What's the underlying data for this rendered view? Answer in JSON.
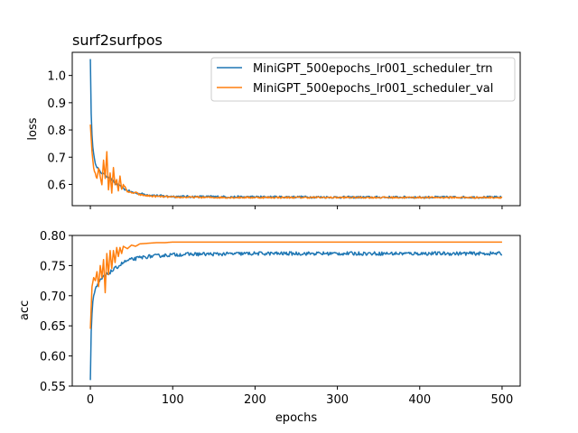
{
  "chart_data": [
    {
      "type": "line",
      "title": "surf2surfpos",
      "xlabel": "",
      "ylabel": "loss",
      "xlim": [
        -22,
        522
      ],
      "ylim": [
        0.522,
        1.085
      ],
      "xticks": [
        0,
        100,
        200,
        300,
        400,
        500
      ],
      "xtick_labels_visible": false,
      "yticks": [
        0.6,
        0.7,
        0.8,
        0.9,
        1.0
      ],
      "ytick_labels": [
        "0.6",
        "0.7",
        "0.8",
        "0.9",
        "1.0"
      ],
      "grid": false,
      "legend_position": "top-right",
      "series": [
        {
          "name": "MiniGPT_500epochs_lr001_scheduler_trn",
          "color": "#1f77b4",
          "x": [
            0,
            1,
            2,
            3,
            4,
            5,
            6,
            8,
            10,
            12,
            15,
            18,
            20,
            25,
            30,
            35,
            40,
            45,
            50,
            60,
            70,
            80,
            90,
            100,
            125,
            150,
            175,
            200,
            250,
            300,
            350,
            400,
            450,
            500
          ],
          "values": [
            1.06,
            0.86,
            0.78,
            0.74,
            0.71,
            0.69,
            0.68,
            0.665,
            0.655,
            0.645,
            0.64,
            0.635,
            0.63,
            0.62,
            0.605,
            0.595,
            0.585,
            0.578,
            0.572,
            0.566,
            0.562,
            0.559,
            0.557,
            0.556,
            0.555,
            0.555,
            0.554,
            0.554,
            0.554,
            0.553,
            0.553,
            0.553,
            0.553,
            0.553
          ],
          "noise": 0.004
        },
        {
          "name": "MiniGPT_500epochs_lr001_scheduler_val",
          "color": "#ff7f0e",
          "x": [
            0,
            2,
            4,
            6,
            8,
            10,
            12,
            14,
            16,
            18,
            20,
            22,
            24,
            26,
            28,
            30,
            32,
            34,
            36,
            38,
            40,
            45,
            50,
            55,
            60,
            70,
            80,
            90,
            100,
            125,
            150,
            200,
            250,
            300,
            350,
            400,
            450,
            500
          ],
          "values": [
            0.82,
            0.72,
            0.66,
            0.64,
            0.62,
            0.66,
            0.63,
            0.6,
            0.69,
            0.62,
            0.72,
            0.58,
            0.64,
            0.57,
            0.66,
            0.6,
            0.62,
            0.575,
            0.63,
            0.58,
            0.6,
            0.575,
            0.568,
            0.57,
            0.562,
            0.558,
            0.556,
            0.555,
            0.553,
            0.553,
            0.552,
            0.552,
            0.552,
            0.552,
            0.552,
            0.552,
            0.552,
            0.552
          ],
          "noise": 0.003
        }
      ]
    },
    {
      "type": "line",
      "title": "",
      "xlabel": "epochs",
      "ylabel": "acc",
      "xlim": [
        -22,
        522
      ],
      "ylim": [
        0.55,
        0.8
      ],
      "xticks": [
        0,
        100,
        200,
        300,
        400,
        500
      ],
      "xtick_labels": [
        "0",
        "100",
        "200",
        "300",
        "400",
        "500"
      ],
      "yticks": [
        0.55,
        0.6,
        0.65,
        0.7,
        0.75,
        0.8
      ],
      "ytick_labels": [
        "0.55",
        "0.60",
        "0.65",
        "0.70",
        "0.75",
        "0.80"
      ],
      "grid": false,
      "series": [
        {
          "name": "MiniGPT_500epochs_lr001_scheduler_trn",
          "color": "#1f77b4",
          "x": [
            0,
            1,
            2,
            3,
            4,
            5,
            6,
            8,
            10,
            12,
            15,
            20,
            25,
            30,
            35,
            40,
            45,
            50,
            60,
            70,
            80,
            90,
            100,
            125,
            150,
            200,
            250,
            300,
            350,
            400,
            450,
            500
          ],
          "values": [
            0.56,
            0.64,
            0.67,
            0.69,
            0.7,
            0.705,
            0.71,
            0.715,
            0.72,
            0.725,
            0.73,
            0.735,
            0.74,
            0.745,
            0.75,
            0.755,
            0.758,
            0.76,
            0.763,
            0.765,
            0.766,
            0.767,
            0.768,
            0.769,
            0.769,
            0.77,
            0.77,
            0.77,
            0.77,
            0.77,
            0.77,
            0.77
          ],
          "noise": 0.003
        },
        {
          "name": "MiniGPT_500epochs_lr001_scheduler_val",
          "color": "#ff7f0e",
          "x": [
            0,
            2,
            4,
            6,
            8,
            10,
            12,
            14,
            16,
            18,
            20,
            22,
            24,
            26,
            28,
            30,
            32,
            34,
            36,
            38,
            40,
            45,
            50,
            55,
            60,
            70,
            80,
            90,
            100,
            110,
            120,
            150,
            200,
            250,
            300,
            350,
            400,
            450,
            500
          ],
          "values": [
            0.645,
            0.715,
            0.73,
            0.725,
            0.74,
            0.715,
            0.75,
            0.73,
            0.76,
            0.705,
            0.77,
            0.735,
            0.775,
            0.745,
            0.775,
            0.755,
            0.78,
            0.765,
            0.78,
            0.77,
            0.782,
            0.778,
            0.784,
            0.782,
            0.786,
            0.787,
            0.788,
            0.788,
            0.789,
            0.789,
            0.789,
            0.789,
            0.789,
            0.789,
            0.789,
            0.789,
            0.789,
            0.789,
            0.789
          ],
          "noise": 0.0
        }
      ]
    }
  ]
}
